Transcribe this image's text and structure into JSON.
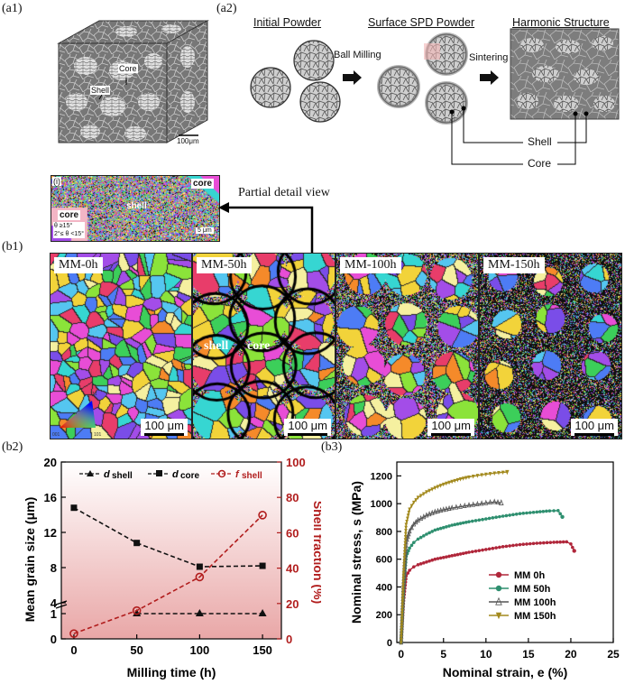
{
  "labels": {
    "a1": "(a1)",
    "a2": "(a2)",
    "b1": "(b1)",
    "b2": "(b2)",
    "b3": "(b3)"
  },
  "a1": {
    "core": "Core",
    "shell": "Shell",
    "scale": "100μm"
  },
  "a2": {
    "initial": "Initial Powder",
    "surface": "Surface SPD Powder",
    "harmonic": "Harmonic Structure",
    "ball_milling": "Ball Milling",
    "sintering": "Sintering",
    "shell": "Shell",
    "core": "Core"
  },
  "detail": {
    "tag": "(i)",
    "core_top": "core",
    "core_left": "core",
    "shell": "shell",
    "legend1": "θ ≥15°",
    "legend2": "2°≤ θ <15°",
    "scale": "5 μm",
    "partial": "Partial detail view"
  },
  "b1": {
    "panels": [
      "MM-0h",
      "MM-50h",
      "MM-100h",
      "MM-150h"
    ],
    "scale": "100 μm",
    "shell": "shell",
    "core": "core",
    "ipf": {
      "top": "111",
      "left": "001",
      "right": "101"
    }
  },
  "colors": {
    "ebsd_palette": [
      "#e83d6a",
      "#3ccf5a",
      "#4d7cf5",
      "#f2d33a",
      "#a34de8",
      "#36d6d2",
      "#f58a2a",
      "#8be33a",
      "#e84dd6",
      "#7a4de8",
      "#f5f0a0",
      "#55c6f0"
    ]
  },
  "chart_b2": {
    "type": "line",
    "xlabel": "Milling time (h)",
    "ylabel_left": "Mean grain size (μm)",
    "ylabel_right": "Shell fraction (%)",
    "x_ticks": [
      "0",
      "50",
      "100",
      "150"
    ],
    "y_left_ticks_upper": [
      "4",
      "8",
      "12",
      "16",
      "20"
    ],
    "y_left_ticks_lower": [
      "0",
      "1"
    ],
    "y_right_ticks": [
      "0",
      "20",
      "40",
      "60",
      "80",
      "100"
    ],
    "legend": [
      {
        "sym": "d",
        "sub": "shell"
      },
      {
        "sym": "d",
        "sub": "core"
      },
      {
        "sym": "f",
        "sub": "shell"
      }
    ]
  },
  "chart_b3": {
    "type": "line",
    "xlabel": "Nominal strain, e (%)",
    "ylabel": "Nominal stress, s (MPa)",
    "x_ticks": [
      "0",
      "5",
      "10",
      "15",
      "20",
      "25"
    ],
    "y_ticks": [
      "0",
      "200",
      "400",
      "600",
      "800",
      "1000",
      "1200"
    ],
    "legend": [
      "MM 0h",
      "MM 50h",
      "MM 100h",
      "MM 150h"
    ]
  },
  "chart_data": [
    {
      "type": "line",
      "title": "",
      "xlabel": "Milling time (h)",
      "ylabel": "Mean grain size (μm)",
      "ylabel_right": "Shell fraction (%)",
      "x": [
        0,
        50,
        100,
        150
      ],
      "series": [
        {
          "name": "d shell",
          "axis": "left",
          "x": [
            50,
            100,
            150
          ],
          "values": [
            1,
            1,
            1
          ],
          "color": "#111111",
          "marker": "triangle"
        },
        {
          "name": "d core",
          "axis": "left",
          "x": [
            0,
            50,
            100,
            150
          ],
          "values": [
            14.8,
            10.8,
            8.1,
            8.2
          ],
          "color": "#111111",
          "marker": "square"
        },
        {
          "name": "f shell",
          "axis": "right",
          "x": [
            0,
            50,
            100,
            150
          ],
          "values": [
            3,
            16,
            35,
            70
          ],
          "color": "#b11d1d",
          "marker": "circle"
        }
      ],
      "ylim_left": [
        0,
        20
      ],
      "ylim_right": [
        0,
        100
      ],
      "grid": false
    },
    {
      "type": "line",
      "title": "",
      "xlabel": "Nominal strain, e (%)",
      "ylabel": "Nominal stress, s (MPa)",
      "xlim": [
        0,
        25
      ],
      "ylim": [
        0,
        1300
      ],
      "legend": "bottom-right",
      "series": [
        {
          "name": "MM 0h",
          "color": "#b0263a",
          "marker": "circle",
          "x": [
            0,
            0.3,
            0.6,
            1.0,
            1.5,
            2,
            3,
            4,
            6,
            8,
            10,
            12,
            14,
            16,
            18,
            19.5,
            20.0,
            20.4
          ],
          "values": [
            0,
            300,
            480,
            520,
            545,
            560,
            580,
            600,
            625,
            650,
            670,
            690,
            705,
            715,
            722,
            725,
            710,
            660
          ]
        },
        {
          "name": "MM 50h",
          "color": "#2e8f6f",
          "marker": "circle",
          "x": [
            0,
            0.3,
            0.6,
            1.0,
            1.5,
            2,
            3,
            4,
            6,
            8,
            10,
            12,
            14,
            16,
            17.5,
            18.5,
            19.0
          ],
          "values": [
            0,
            380,
            620,
            680,
            720,
            745,
            780,
            810,
            845,
            870,
            890,
            910,
            928,
            940,
            948,
            950,
            905
          ]
        },
        {
          "name": "MM 100h",
          "color": "#555555",
          "marker": "triangle",
          "x": [
            0,
            0.3,
            0.6,
            1.0,
            1.5,
            2,
            3,
            4,
            5,
            6,
            7,
            8,
            9,
            10,
            11,
            11.8
          ],
          "values": [
            0,
            420,
            720,
            800,
            850,
            880,
            915,
            940,
            955,
            968,
            978,
            988,
            996,
            1004,
            1012,
            1005
          ]
        },
        {
          "name": "MM 150h",
          "color": "#a38a1e",
          "marker": "triangle-down",
          "x": [
            0,
            0.3,
            0.6,
            1.0,
            1.5,
            2,
            3,
            4,
            5,
            6,
            7,
            8,
            9,
            10,
            11,
            12,
            12.5
          ],
          "values": [
            0,
            500,
            850,
            960,
            1010,
            1045,
            1085,
            1115,
            1140,
            1160,
            1178,
            1192,
            1203,
            1212,
            1220,
            1226,
            1228
          ]
        }
      ]
    }
  ]
}
